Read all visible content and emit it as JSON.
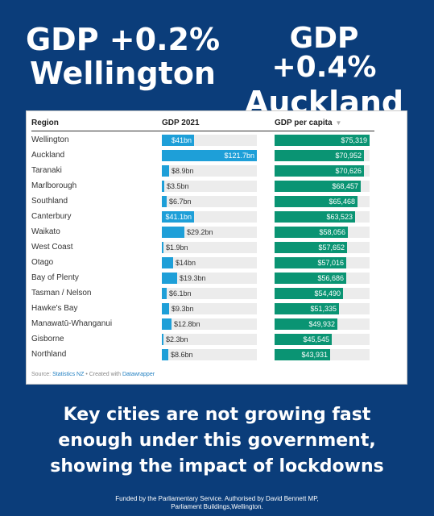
{
  "headline_left": {
    "line1": "GDP +0.2%",
    "line2": "Wellington"
  },
  "headline_right": {
    "line1": "GDP +0.4%",
    "line2": "Auckland"
  },
  "colors": {
    "background": "#0b3d7a",
    "gdp_bar": "#1e9fd8",
    "capita_bar": "#0a9473",
    "track": "#ececec"
  },
  "chart_data": {
    "type": "table",
    "columns": [
      "Region",
      "GDP 2021",
      "GDP per capita"
    ],
    "sort_indicator": "▼",
    "gdp_max": 121.7,
    "capita_max": 75319,
    "rows": [
      {
        "region": "Wellington",
        "gdp": 41,
        "gdp_label": "$41bn",
        "capita": 75319,
        "capita_label": "$75,319"
      },
      {
        "region": "Auckland",
        "gdp": 121.7,
        "gdp_label": "$121.7bn",
        "capita": 70952,
        "capita_label": "$70,952"
      },
      {
        "region": "Taranaki",
        "gdp": 8.9,
        "gdp_label": "$8.9bn",
        "capita": 70626,
        "capita_label": "$70,626"
      },
      {
        "region": "Marlborough",
        "gdp": 3.5,
        "gdp_label": "$3.5bn",
        "capita": 68457,
        "capita_label": "$68,457"
      },
      {
        "region": "Southland",
        "gdp": 6.7,
        "gdp_label": "$6.7bn",
        "capita": 65468,
        "capita_label": "$65,468"
      },
      {
        "region": "Canterbury",
        "gdp": 41.1,
        "gdp_label": "$41.1bn",
        "capita": 63523,
        "capita_label": "$63,523"
      },
      {
        "region": "Waikato",
        "gdp": 29.2,
        "gdp_label": "$29.2bn",
        "capita": 58056,
        "capita_label": "$58,056"
      },
      {
        "region": "West Coast",
        "gdp": 1.9,
        "gdp_label": "$1.9bn",
        "capita": 57652,
        "capita_label": "$57,652"
      },
      {
        "region": "Otago",
        "gdp": 14,
        "gdp_label": "$14bn",
        "capita": 57016,
        "capita_label": "$57,016"
      },
      {
        "region": "Bay of Plenty",
        "gdp": 19.3,
        "gdp_label": "$19.3bn",
        "capita": 56686,
        "capita_label": "$56,686"
      },
      {
        "region": "Tasman / Nelson",
        "gdp": 6.1,
        "gdp_label": "$6.1bn",
        "capita": 54490,
        "capita_label": "$54,490"
      },
      {
        "region": "Hawke's Bay",
        "gdp": 9.3,
        "gdp_label": "$9.3bn",
        "capita": 51335,
        "capita_label": "$51,335"
      },
      {
        "region": "Manawatū-Whanganui",
        "gdp": 12.8,
        "gdp_label": "$12.8bn",
        "capita": 49932,
        "capita_label": "$49,932"
      },
      {
        "region": "Gisborne",
        "gdp": 2.3,
        "gdp_label": "$2.3bn",
        "capita": 45545,
        "capita_label": "$45,545"
      },
      {
        "region": "Northland",
        "gdp": 8.6,
        "gdp_label": "$8.6bn",
        "capita": 43931,
        "capita_label": "$43,931"
      }
    ],
    "source_prefix": "Source: ",
    "source_link": "Statistics NZ",
    "created_with_prefix": " • Created with ",
    "created_with_link": "Datawrapper"
  },
  "tagline": [
    "Key cities are not growing fast",
    "enough under this government,",
    "showing the impact of lockdowns"
  ],
  "footer": [
    "Funded by the Parliamentary Service. Authorised by David Bennett MP,",
    "Parliament Buildings,Wellington."
  ]
}
